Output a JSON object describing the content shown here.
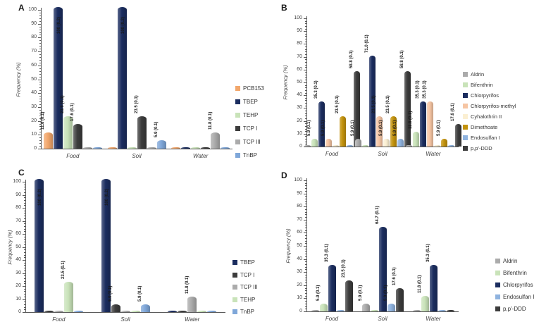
{
  "figure": {
    "ylabel": "Frequency (%)",
    "categories": [
      "Food",
      "Soil",
      "Water"
    ],
    "ylim": [
      0,
      100
    ],
    "yticks": [
      0,
      10,
      20,
      30,
      40,
      50,
      60,
      70,
      80,
      90,
      100
    ],
    "grid": false,
    "legend_position": "right"
  },
  "chart_data": [
    {
      "panel": "A",
      "type": "bar",
      "ylabel": "Frequency (%)",
      "ylim": [
        0,
        100
      ],
      "categories": [
        "Food",
        "Soil",
        "Water"
      ],
      "series": [
        {
          "name": "PCB153",
          "color": "#F2A76C",
          "values": [
            11.8,
            0,
            0
          ],
          "labels": [
            "11.8 (0.1)",
            "",
            ""
          ]
        },
        {
          "name": "TBEP",
          "color": "#1B2D5F",
          "values": [
            100,
            100,
            0
          ],
          "labels": [
            "100 (0.2)",
            "100 (0.2)",
            ""
          ]
        },
        {
          "name": "TEHP",
          "color": "#C9E3B9",
          "values": [
            23.5,
            0,
            0
          ],
          "labels": [
            "23.5 (0.1)",
            "",
            ""
          ]
        },
        {
          "name": "TCP I",
          "color": "#3C3C3C",
          "values": [
            17.6,
            23.5,
            0
          ],
          "labels": [
            "17.6 (0.1)",
            "23.5 (0.1)",
            ""
          ]
        },
        {
          "name": "TCP III",
          "color": "#ABABAB",
          "values": [
            0,
            0,
            11.8
          ],
          "labels": [
            "",
            "",
            "11.8 (0.1)"
          ]
        },
        {
          "name": "TnBP",
          "color": "#7FA7D9",
          "values": [
            0,
            5.9,
            0
          ],
          "labels": [
            "",
            "5.9 (0.1)",
            ""
          ]
        }
      ]
    },
    {
      "panel": "B",
      "type": "bar",
      "ylabel": "Frequency (%)",
      "ylim": [
        0,
        100
      ],
      "categories": [
        "Food",
        "Soil",
        "Water"
      ],
      "series": [
        {
          "name": "Aldrin",
          "color": "#ABABAB",
          "values": [
            0,
            5.9,
            0
          ],
          "labels": [
            "",
            "5.9 (0.1)",
            ""
          ]
        },
        {
          "name": "Bifenthrin",
          "color": "#C9E3B9",
          "values": [
            5.9,
            0,
            11.8
          ],
          "labels": [
            "5.9 (0.1)",
            "",
            "11.8 (0.1)"
          ]
        },
        {
          "name": "Chlorpyrifos",
          "color": "#1B2D5F",
          "values": [
            35.3,
            71.0,
            35.3
          ],
          "labels": [
            "35.3 (0.1)",
            "71.0 (0.1)",
            "35.3 (0.1)"
          ]
        },
        {
          "name": "Chlorpyrifos-methyl",
          "color": "#F6C5A3",
          "values": [
            5.9,
            23.5,
            35.3
          ],
          "labels": [
            "5.9 (0.1)",
            "23.5 (0.1)",
            "35.3 (0.1)"
          ]
        },
        {
          "name": "Cyhalothrin II",
          "color": "#FBEFD2",
          "values": [
            0,
            5.9,
            0
          ],
          "labels": [
            "",
            "5.9 (0.1)",
            ""
          ]
        },
        {
          "name": "Dimethoate",
          "color": "#C3930D",
          "values": [
            23.5,
            23.5,
            5.9
          ],
          "labels": [
            "23.5 (0.1)",
            "23.5 (0.1)",
            "5.9 (0.1)"
          ]
        },
        {
          "name": "Endosulfan I",
          "color": "#8FB3DF",
          "values": [
            0,
            5.9,
            0
          ],
          "labels": [
            "",
            "5.9 (0.1)",
            ""
          ]
        },
        {
          "name": "p,p'-DDD",
          "color": "#3C3C3C",
          "values": [
            58.8,
            58.8,
            17.6
          ],
          "labels": [
            "58.8 (0.1)",
            "58.8 (0.1)",
            "17.6 (0.1)"
          ]
        }
      ]
    },
    {
      "panel": "C",
      "type": "bar",
      "ylabel": "Frequency (%)",
      "ylim": [
        0,
        100
      ],
      "categories": [
        "Food",
        "Soil",
        "Water"
      ],
      "series": [
        {
          "name": "TBEP",
          "color": "#1B2D5F",
          "values": [
            100,
            100,
            0
          ],
          "labels": [
            "100 (0.2)",
            "100 (0.2)",
            ""
          ]
        },
        {
          "name": "TCP I",
          "color": "#3C3C3C",
          "values": [
            0,
            5.9,
            0
          ],
          "labels": [
            "",
            "5.9 (0.1)",
            ""
          ]
        },
        {
          "name": "TCP III",
          "color": "#ABABAB",
          "values": [
            0,
            0,
            11.8
          ],
          "labels": [
            "",
            "",
            "11.8 (0.1)"
          ]
        },
        {
          "name": "TEHP",
          "color": "#C9E3B9",
          "values": [
            23.5,
            0,
            0
          ],
          "labels": [
            "23.5 (0.1)",
            "",
            ""
          ]
        },
        {
          "name": "TnBP",
          "color": "#7FA7D9",
          "values": [
            0,
            5.9,
            0
          ],
          "labels": [
            "",
            "5.9 (0.1)",
            ""
          ]
        }
      ]
    },
    {
      "panel": "D",
      "type": "bar",
      "ylabel": "Frequency (%)",
      "ylim": [
        0,
        100
      ],
      "categories": [
        "Food",
        "Soil",
        "Water"
      ],
      "series": [
        {
          "name": "Aldrin",
          "color": "#ABABAB",
          "values": [
            0,
            5.9,
            0
          ],
          "labels": [
            "",
            "5.9 (0.1)",
            ""
          ]
        },
        {
          "name": "Bifenthrin",
          "color": "#C9E3B9",
          "values": [
            5.9,
            0,
            11.8
          ],
          "labels": [
            "5.9 (0.1)",
            "",
            "11.8 (0.1)"
          ]
        },
        {
          "name": "Chlorpyrifos",
          "color": "#1B2D5F",
          "values": [
            35.3,
            64.7,
            35.3
          ],
          "labels": [
            "35.3 (0.1)",
            "64.7 (0.1)",
            "35.3 (0.1)"
          ]
        },
        {
          "name": "Endosulfan I",
          "color": "#8FB3DF",
          "values": [
            0,
            5.9,
            0
          ],
          "labels": [
            "",
            "5.9 (0.1)",
            ""
          ]
        },
        {
          "name": "p,p'-DDD",
          "color": "#3C3C3C",
          "values": [
            23.5,
            17.6,
            0
          ],
          "labels": [
            "23.5 (0.1)",
            "17.6 (0.1)",
            ""
          ]
        }
      ]
    }
  ]
}
